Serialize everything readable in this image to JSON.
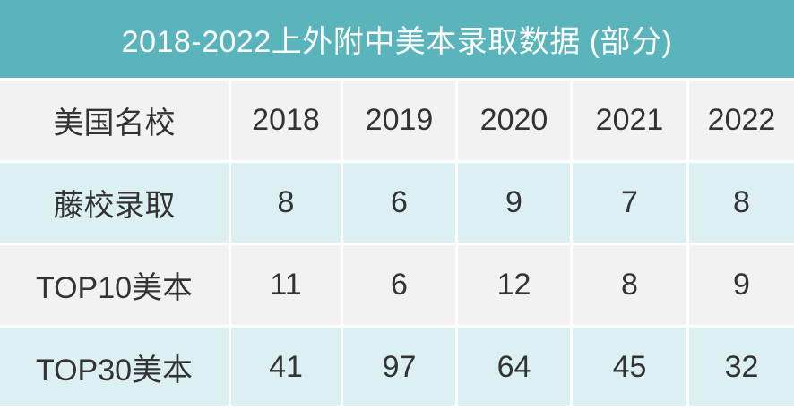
{
  "title": "2018-2022上外附中美本录取数据 (部分)",
  "colors": {
    "title_bg": "#5ab4bc",
    "row_gray": "#f2f2f2",
    "row_blue": "#dcf0f4",
    "text": "#333333"
  },
  "table": {
    "headers": [
      "美国名校",
      "2018",
      "2019",
      "2020",
      "2021",
      "2022"
    ],
    "rows": [
      [
        "藤校录取",
        "8",
        "6",
        "9",
        "7",
        "8"
      ],
      [
        "TOP10美本",
        "11",
        "6",
        "12",
        "8",
        "9"
      ],
      [
        "TOP30美本",
        "41",
        "97",
        "64",
        "45",
        "32"
      ]
    ]
  }
}
